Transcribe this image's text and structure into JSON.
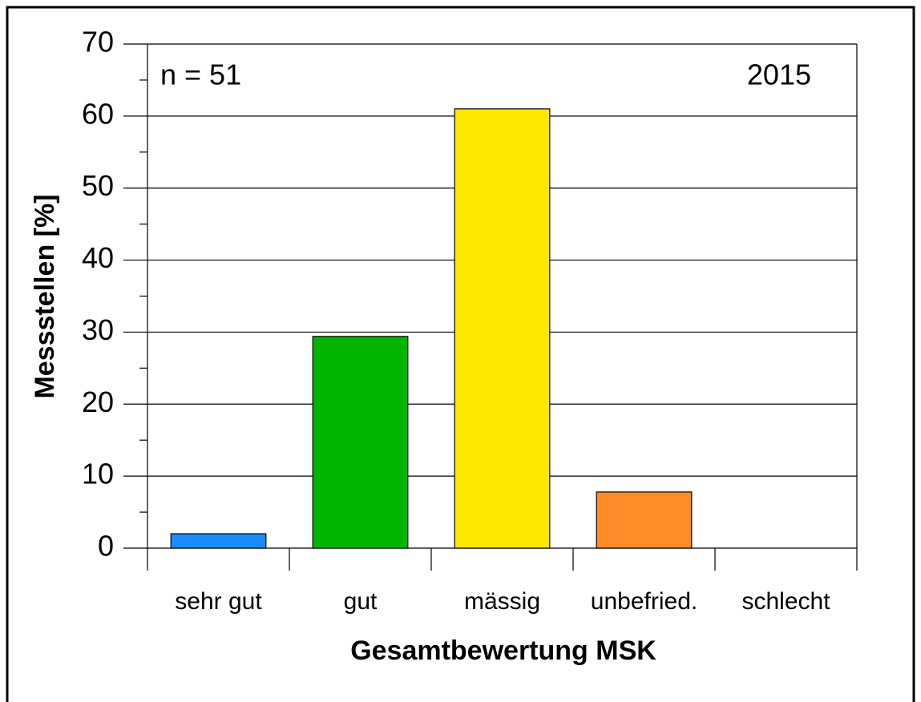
{
  "chart_data": {
    "type": "bar",
    "x_label": "Gesamtbewertung MSK",
    "y_label": "Messstellen [%]",
    "annotations": [
      "n = 51",
      "2015"
    ],
    "categories": [
      "sehr gut",
      "gut",
      "mässig",
      "unbefried.",
      "schlecht"
    ],
    "values": [
      2,
      29.4,
      61,
      7.8,
      0
    ],
    "colors": [
      "#1a8cff",
      "#00b400",
      "#ffe800",
      "#ff8c28",
      "#888888"
    ],
    "ylim": [
      0,
      70
    ],
    "yticks": [
      0,
      10,
      20,
      30,
      40,
      50,
      60,
      70
    ],
    "minor_yticks": [
      5,
      15,
      25,
      35,
      45,
      55,
      65
    ],
    "grid": true
  }
}
